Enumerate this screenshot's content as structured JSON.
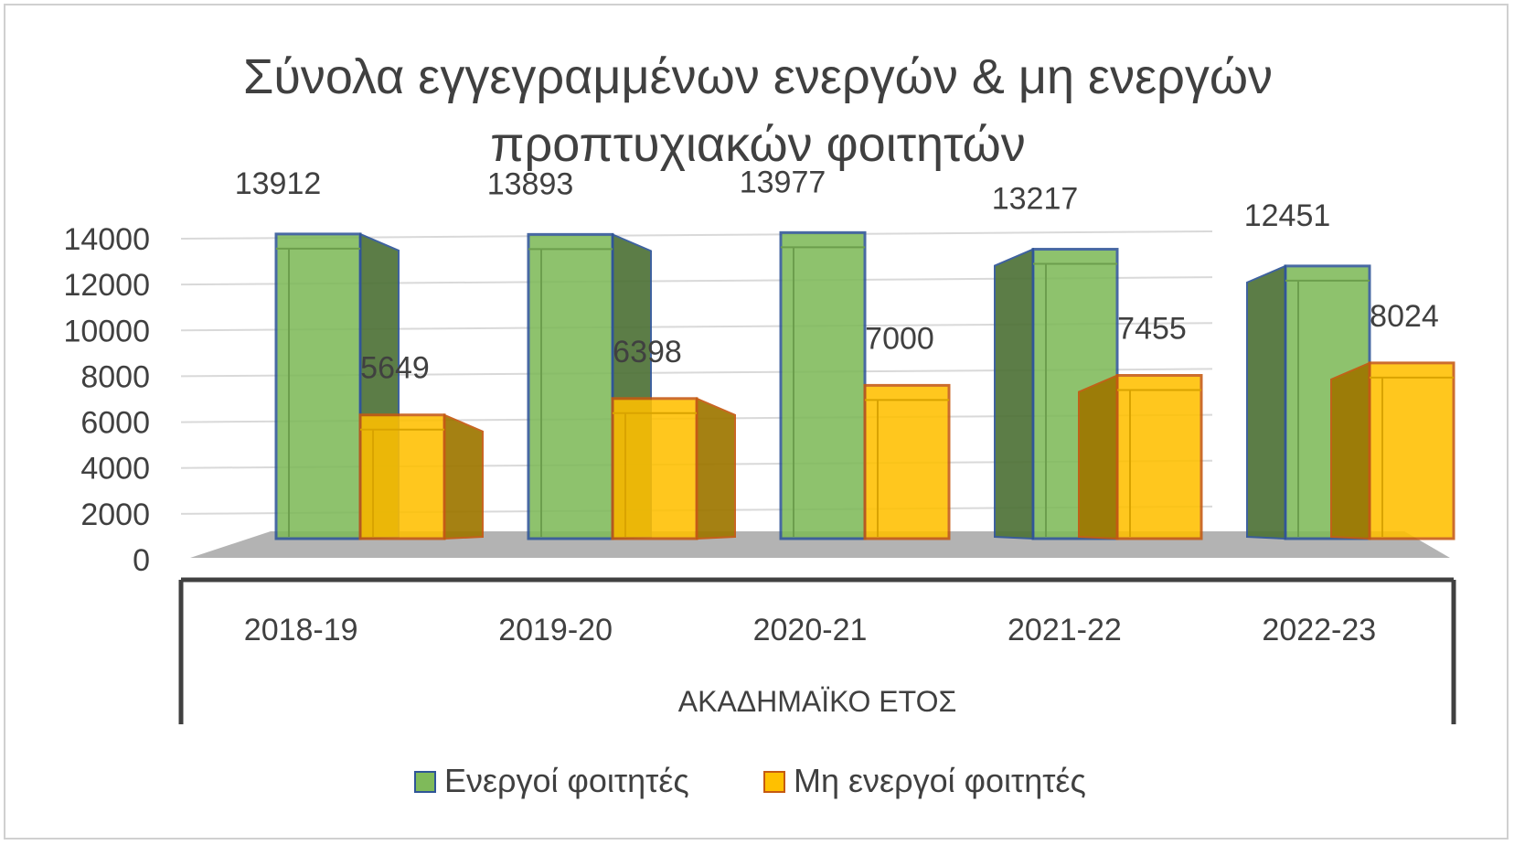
{
  "chart_data": {
    "type": "bar",
    "title_lines": [
      "Σύνολα εγγεγραμμένων ενεργών & μη ενεργών",
      "προπτυχιακών φοιτητών"
    ],
    "categories": [
      "2018-19",
      "2019-20",
      "2020-21",
      "2021-22",
      "2022-23"
    ],
    "series": [
      {
        "name": "Ενεργοί φοιτητές",
        "values": [
          13912,
          13893,
          13977,
          13217,
          12451
        ],
        "color": "#7fba5a",
        "edge": "#2f5597"
      },
      {
        "name": "Μη ενεργοί φοιτητές",
        "values": [
          5649,
          6398,
          7000,
          7455,
          8024
        ],
        "color": "#ffc000",
        "edge": "#c55a11"
      }
    ],
    "xlabel": "ΑΚΑΔΗΜΑΪΚΟ ΕΤΟΣ",
    "ylabel": "",
    "ylim": [
      0,
      14000
    ],
    "yticks": [
      0,
      2000,
      4000,
      6000,
      8000,
      10000,
      12000,
      14000
    ],
    "grid": true,
    "legend": "bottom",
    "floor_color": "#b3b3b3"
  }
}
